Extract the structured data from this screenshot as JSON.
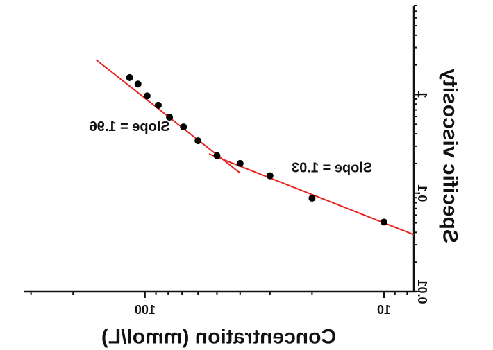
{
  "chart_data": {
    "type": "scatter",
    "mirrored": true,
    "xlabel": "Concentration (mmol/L)",
    "ylabel": "Specific viscosity",
    "x_scale": "log",
    "y_scale": "log",
    "xlim": [
      7.5,
      320
    ],
    "ylim": [
      0.01,
      8
    ],
    "x_ticks": [
      {
        "value": 10,
        "label": "10"
      },
      {
        "value": 100,
        "label": "100"
      }
    ],
    "y_ticks": [
      {
        "value": 0.01,
        "label": "0.01"
      },
      {
        "value": 0.1,
        "label": "0.1"
      },
      {
        "value": 1,
        "label": "1"
      }
    ],
    "points": [
      {
        "x": 116,
        "y": 1.49
      },
      {
        "x": 107,
        "y": 1.28
      },
      {
        "x": 98,
        "y": 0.97
      },
      {
        "x": 88,
        "y": 0.78
      },
      {
        "x": 79,
        "y": 0.59
      },
      {
        "x": 69,
        "y": 0.47
      },
      {
        "x": 60,
        "y": 0.34
      },
      {
        "x": 50,
        "y": 0.24
      },
      {
        "x": 40,
        "y": 0.2
      },
      {
        "x": 30,
        "y": 0.15
      },
      {
        "x": 20,
        "y": 0.089
      },
      {
        "x": 10,
        "y": 0.051
      }
    ],
    "fit_lines": [
      {
        "x": [
          160,
          40
        ],
        "y": [
          2.25,
          0.16
        ],
        "color": "#e8211d"
      },
      {
        "x": [
          54,
          7.5
        ],
        "y": [
          0.25,
          0.038
        ],
        "color": "#e8211d"
      }
    ],
    "annotations": [
      {
        "text": "Slope = 1.96",
        "x": 116,
        "y": 0.47
      },
      {
        "text": "Slope = 1.03",
        "x": 16.5,
        "y": 0.18
      }
    ],
    "grid": false,
    "axes_color": "#111111",
    "point_color": "#000000"
  }
}
